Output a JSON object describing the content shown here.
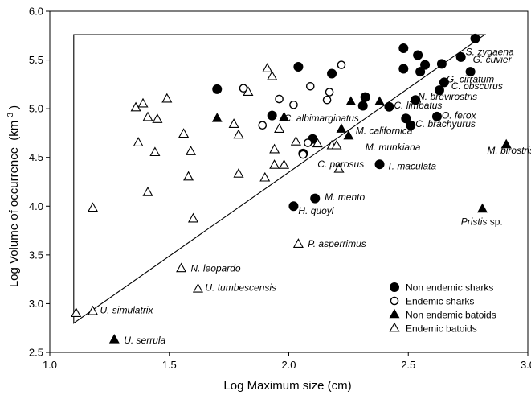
{
  "chart_data": {
    "type": "scatter",
    "xlabel": "Log Maximum size (cm)",
    "ylabel_main": "Log Volume of occurrence",
    "ylabel_unit": "(km",
    "ylabel_sup": "3",
    "ylabel_close": ")",
    "xlim": [
      1.0,
      3.0
    ],
    "ylim": [
      2.5,
      6.0
    ],
    "x_ticks": [
      "1.0",
      "1.5",
      "2.0",
      "2.5",
      "3.0"
    ],
    "y_ticks": [
      "2.5",
      "3.0",
      "3.5",
      "4.0",
      "4.5",
      "5.0",
      "5.5",
      "6.0"
    ],
    "legend_position": "bottom-right",
    "envelope": [
      [
        1.1,
        2.8
      ],
      [
        1.1,
        5.76
      ],
      [
        2.82,
        5.76
      ]
    ],
    "series": [
      {
        "name": "Non endemic sharks",
        "marker": "filled-circle",
        "points": [
          [
            1.7,
            5.2
          ],
          [
            1.93,
            4.93
          ],
          [
            2.04,
            5.43
          ],
          [
            2.1,
            4.69
          ],
          [
            2.18,
            5.36
          ],
          [
            2.31,
            5.03
          ],
          [
            2.32,
            5.12
          ],
          [
            2.38,
            4.43
          ],
          [
            2.42,
            5.02
          ],
          [
            2.48,
            5.62
          ],
          [
            2.48,
            5.41
          ],
          [
            2.49,
            4.9
          ],
          [
            2.51,
            4.83
          ],
          [
            2.53,
            5.09
          ],
          [
            2.54,
            5.55
          ],
          [
            2.55,
            5.38
          ],
          [
            2.57,
            5.45
          ],
          [
            2.62,
            4.92
          ],
          [
            2.63,
            5.19
          ],
          [
            2.64,
            5.46
          ],
          [
            2.65,
            5.27
          ],
          [
            2.72,
            5.53
          ],
          [
            2.76,
            5.38
          ],
          [
            2.78,
            5.72
          ],
          [
            2.06,
            4.54
          ],
          [
            2.02,
            4.0
          ],
          [
            2.11,
            4.08
          ]
        ]
      },
      {
        "name": "Endemic sharks",
        "marker": "open-circle",
        "points": [
          [
            1.81,
            5.21
          ],
          [
            1.89,
            4.83
          ],
          [
            1.96,
            5.1
          ],
          [
            2.02,
            5.04
          ],
          [
            2.06,
            4.53
          ],
          [
            2.08,
            4.65
          ],
          [
            2.09,
            5.23
          ],
          [
            2.16,
            5.09
          ],
          [
            2.17,
            5.17
          ],
          [
            2.22,
            5.45
          ]
        ]
      },
      {
        "name": "Non endemic batoids",
        "marker": "filled-triangle",
        "points": [
          [
            1.27,
            2.63
          ],
          [
            1.7,
            4.9
          ],
          [
            1.98,
            4.91
          ],
          [
            2.22,
            4.79
          ],
          [
            2.25,
            4.72
          ],
          [
            2.26,
            5.07
          ],
          [
            2.38,
            5.07
          ],
          [
            2.81,
            3.97
          ],
          [
            2.91,
            4.63
          ]
        ]
      },
      {
        "name": "Endemic batoids",
        "marker": "open-triangle",
        "points": [
          [
            1.11,
            2.9
          ],
          [
            1.18,
            2.92
          ],
          [
            1.18,
            3.98
          ],
          [
            1.36,
            5.01
          ],
          [
            1.37,
            4.65
          ],
          [
            1.39,
            5.05
          ],
          [
            1.41,
            4.14
          ],
          [
            1.41,
            4.91
          ],
          [
            1.44,
            4.55
          ],
          [
            1.45,
            4.89
          ],
          [
            1.49,
            5.1
          ],
          [
            1.55,
            3.36
          ],
          [
            1.56,
            4.74
          ],
          [
            1.58,
            4.3
          ],
          [
            1.59,
            4.56
          ],
          [
            1.6,
            3.87
          ],
          [
            1.62,
            3.15
          ],
          [
            1.77,
            4.84
          ],
          [
            1.79,
            4.33
          ],
          [
            1.79,
            4.73
          ],
          [
            1.83,
            5.17
          ],
          [
            1.91,
            5.41
          ],
          [
            1.9,
            4.29
          ],
          [
            1.93,
            5.33
          ],
          [
            1.94,
            4.42
          ],
          [
            1.94,
            4.58
          ],
          [
            1.96,
            4.79
          ],
          [
            2.04,
            3.61
          ],
          [
            2.18,
            4.62
          ],
          [
            2.2,
            4.62
          ],
          [
            2.21,
            4.38
          ],
          [
            2.03,
            4.66
          ],
          [
            1.98,
            4.42
          ],
          [
            2.12,
            4.64
          ]
        ]
      }
    ],
    "annotations": [
      {
        "text": "S. zygaena",
        "x": 2.74,
        "y": 5.55
      },
      {
        "text": "G. cuvier",
        "x": 2.77,
        "y": 5.47
      },
      {
        "text": "G. cirratum",
        "x": 2.66,
        "y": 5.27
      },
      {
        "text": "C. obscurus",
        "x": 2.68,
        "y": 5.2
      },
      {
        "text": "N. brevirostris",
        "x": 2.54,
        "y": 5.09
      },
      {
        "text": "C. limbatus",
        "x": 2.44,
        "y": 5.0
      },
      {
        "text": "O. ferox",
        "x": 2.64,
        "y": 4.9
      },
      {
        "text": "C. albimarginatus",
        "x": 1.98,
        "y": 4.87
      },
      {
        "text": "C. brachyurus",
        "x": 2.53,
        "y": 4.81
      },
      {
        "text": "M. californica",
        "x": 2.28,
        "y": 4.74
      },
      {
        "text": "M. munkiana",
        "x": 2.32,
        "y": 4.57
      },
      {
        "text": "M. birostris",
        "x": 2.83,
        "y": 4.54
      },
      {
        "text": "C. porosus",
        "x": 2.12,
        "y": 4.4
      },
      {
        "text": "T. maculata",
        "x": 2.41,
        "y": 4.38
      },
      {
        "text": "M. mento",
        "x": 2.15,
        "y": 4.06
      },
      {
        "text": "H. quoyi",
        "x": 2.04,
        "y": 3.92
      },
      {
        "text": "Pristis",
        "suffix": " sp.",
        "x": 2.72,
        "y": 3.81
      },
      {
        "text": "P. asperrimus",
        "x": 2.08,
        "y": 3.58
      },
      {
        "text": "N. leopardo",
        "x": 1.59,
        "y": 3.33
      },
      {
        "text": "U. tumbescensis",
        "x": 1.65,
        "y": 3.13
      },
      {
        "text": "U. simulatrix",
        "x": 1.21,
        "y": 2.9
      },
      {
        "text": "U. serrula",
        "x": 1.31,
        "y": 2.59
      }
    ]
  }
}
